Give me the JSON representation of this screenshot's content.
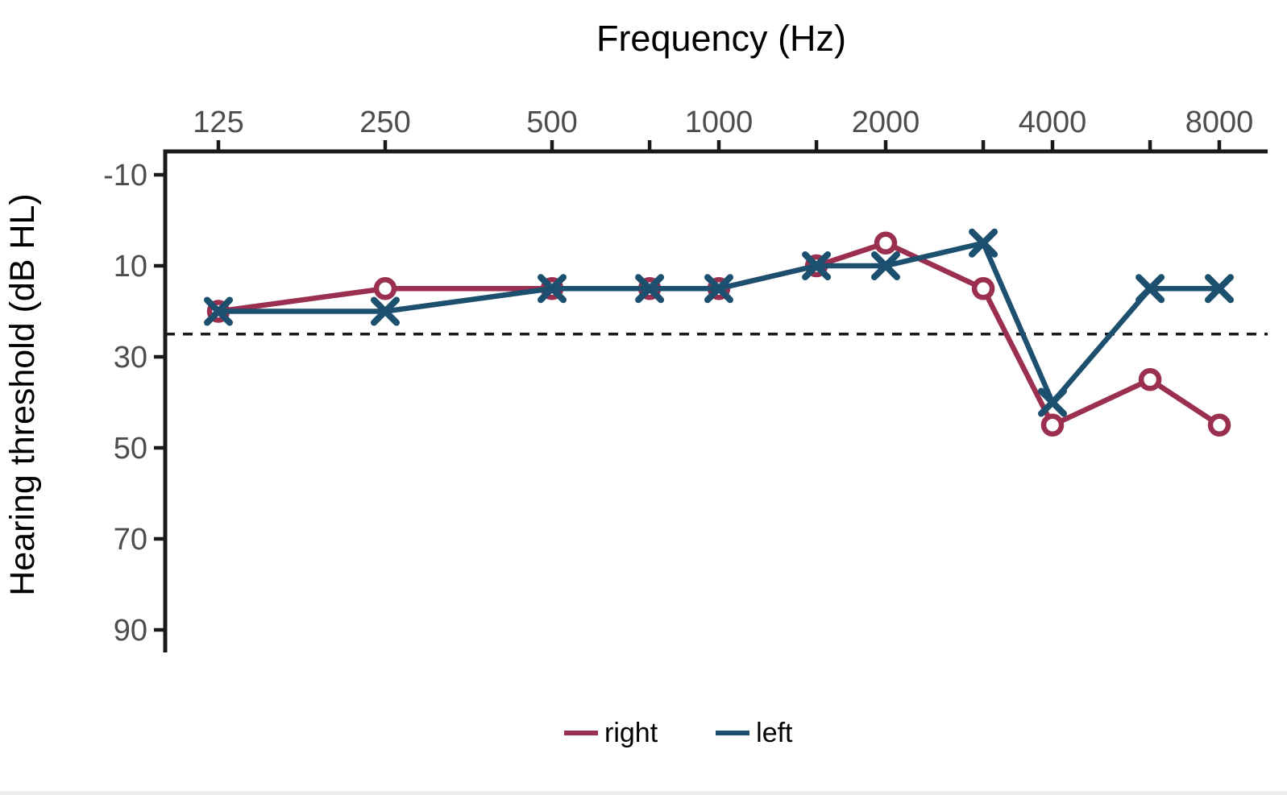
{
  "chart_data": {
    "type": "line",
    "title": "Frequency (Hz)",
    "title_position": "top",
    "xlabel": "Frequency (Hz)",
    "ylabel": "Hearing threshold (dB HL)",
    "x_scale": "log2",
    "y_inverted": true,
    "grid": false,
    "x": [
      125,
      250,
      500,
      750,
      1000,
      1500,
      2000,
      3000,
      4000,
      6000,
      8000
    ],
    "x_tick_labels": [
      "125",
      "250",
      "500",
      "",
      "1000",
      "",
      "2000",
      "",
      "4000",
      "",
      "8000"
    ],
    "y_ticks": [
      -10,
      10,
      30,
      50,
      70,
      90
    ],
    "y_tick_labels": [
      "-10",
      "10",
      "30",
      "50",
      "70",
      "90"
    ],
    "ylim": [
      -16,
      95
    ],
    "reference_line": {
      "value": 25,
      "style": "dashed",
      "color": "#1a1a1a"
    },
    "series": [
      {
        "name": "right",
        "marker": "circle",
        "color": "#9a2f4f",
        "values": [
          20,
          15,
          15,
          15,
          15,
          10,
          5,
          15,
          45,
          35,
          45
        ]
      },
      {
        "name": "left",
        "marker": "x",
        "color": "#1d4f6e",
        "values": [
          20,
          20,
          15,
          15,
          15,
          10,
          10,
          5,
          40,
          15,
          15
        ]
      }
    ],
    "legend_position": "bottom",
    "colors": {
      "axis_text": "#4d4d4d",
      "axis_line": "#1a1a1a",
      "marker_fill": "#ffffff"
    }
  }
}
